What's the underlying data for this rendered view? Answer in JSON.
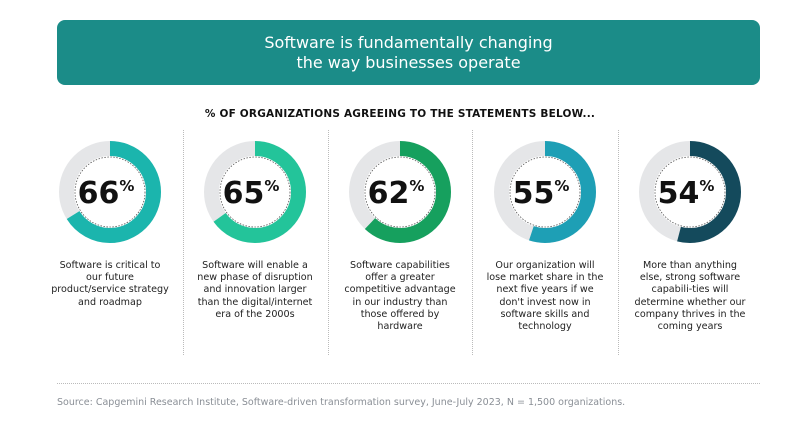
{
  "header": {
    "title": "Software is fundamentally changing the way businesses operate"
  },
  "chart_data": {
    "type": "pie",
    "title": "% OF ORGANIZATIONS AGREEING TO THE STATEMENTS BELOW...",
    "items": [
      {
        "value": 66,
        "label": "66%",
        "color": "#1bb5ad",
        "text": "Software is critical to our future product/service strategy and roadmap"
      },
      {
        "value": 65,
        "label": "65%",
        "color": "#23c49a",
        "text": "Software will enable a new phase of disruption and innovation larger than the digital/internet era of the 2000s"
      },
      {
        "value": 62,
        "label": "62%",
        "color": "#16a05e",
        "text": "Software capabilities offer a greater competitive advantage in our industry than those offered by hardware"
      },
      {
        "value": 55,
        "label": "55%",
        "color": "#1e9fb5",
        "text": "Our organization will lose market share in the next five years if we don't invest now in software skills and technology"
      },
      {
        "value": 54,
        "label": "54%",
        "color": "#144a5c",
        "text": "More than anything else, strong software capabili-ties will determine whether our company thrives in the coming years"
      }
    ],
    "remainder_color": "#e5e6e8"
  },
  "source": "Source: Capgemini Research Institute, Software-driven transformation survey, June-July 2023, N = 1,500 organizations."
}
